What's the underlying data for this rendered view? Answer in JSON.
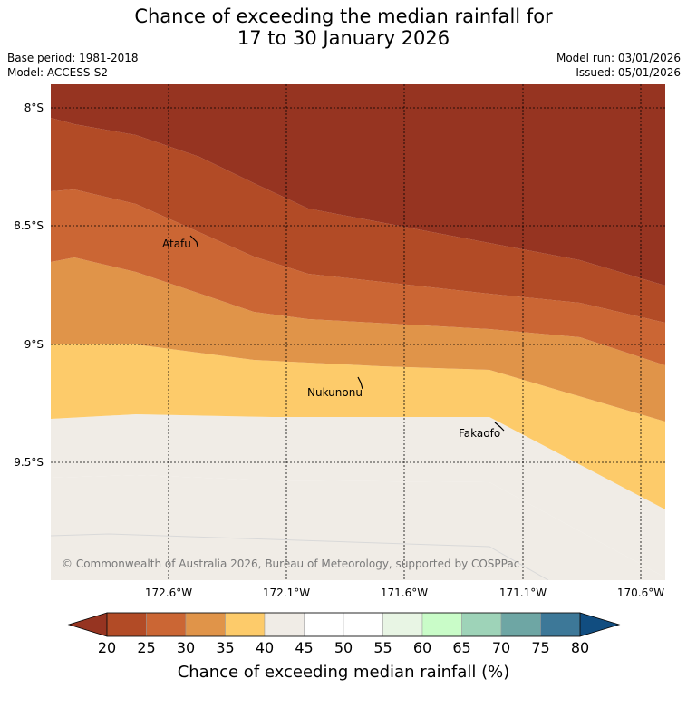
{
  "title_line1": "Chance of exceeding the median rainfall for",
  "title_line2": "17 to 30 January 2026",
  "base_period": "Base period: 1981-2018",
  "model": "Model: ACCESS-S2",
  "model_run": "Model run: 03/01/2026",
  "issued": "Issued: 05/01/2026",
  "copyright": "© Commonwealth of Australia 2026, Bureau of Meteorology, supported by COSPPac",
  "lat_labels": [
    "8°S",
    "8.5°S",
    "9°S",
    "9.5°S"
  ],
  "lon_labels": [
    "172.6°W",
    "172.1°W",
    "171.6°W",
    "171.1°W",
    "170.6°W"
  ],
  "places": [
    "Atafu",
    "Nukunonu",
    "Fakaofo"
  ],
  "colorbar": {
    "label": "Chance of exceeding median rainfall (%)",
    "ticks": [
      "20",
      "25",
      "30",
      "35",
      "40",
      "45",
      "50",
      "55",
      "60",
      "65",
      "70",
      "75",
      "80"
    ],
    "under_color": "#963421",
    "over_color": "#114d80",
    "colors": [
      "#b24b26",
      "#cb6634",
      "#e09449",
      "#fdcb6a",
      "#f0ece6",
      "#ffffff",
      "#ffffff",
      "#e8f5e4",
      "#c9fcc8",
      "#9ed3b8",
      "#6ea6a4",
      "#3d7898"
    ]
  }
}
